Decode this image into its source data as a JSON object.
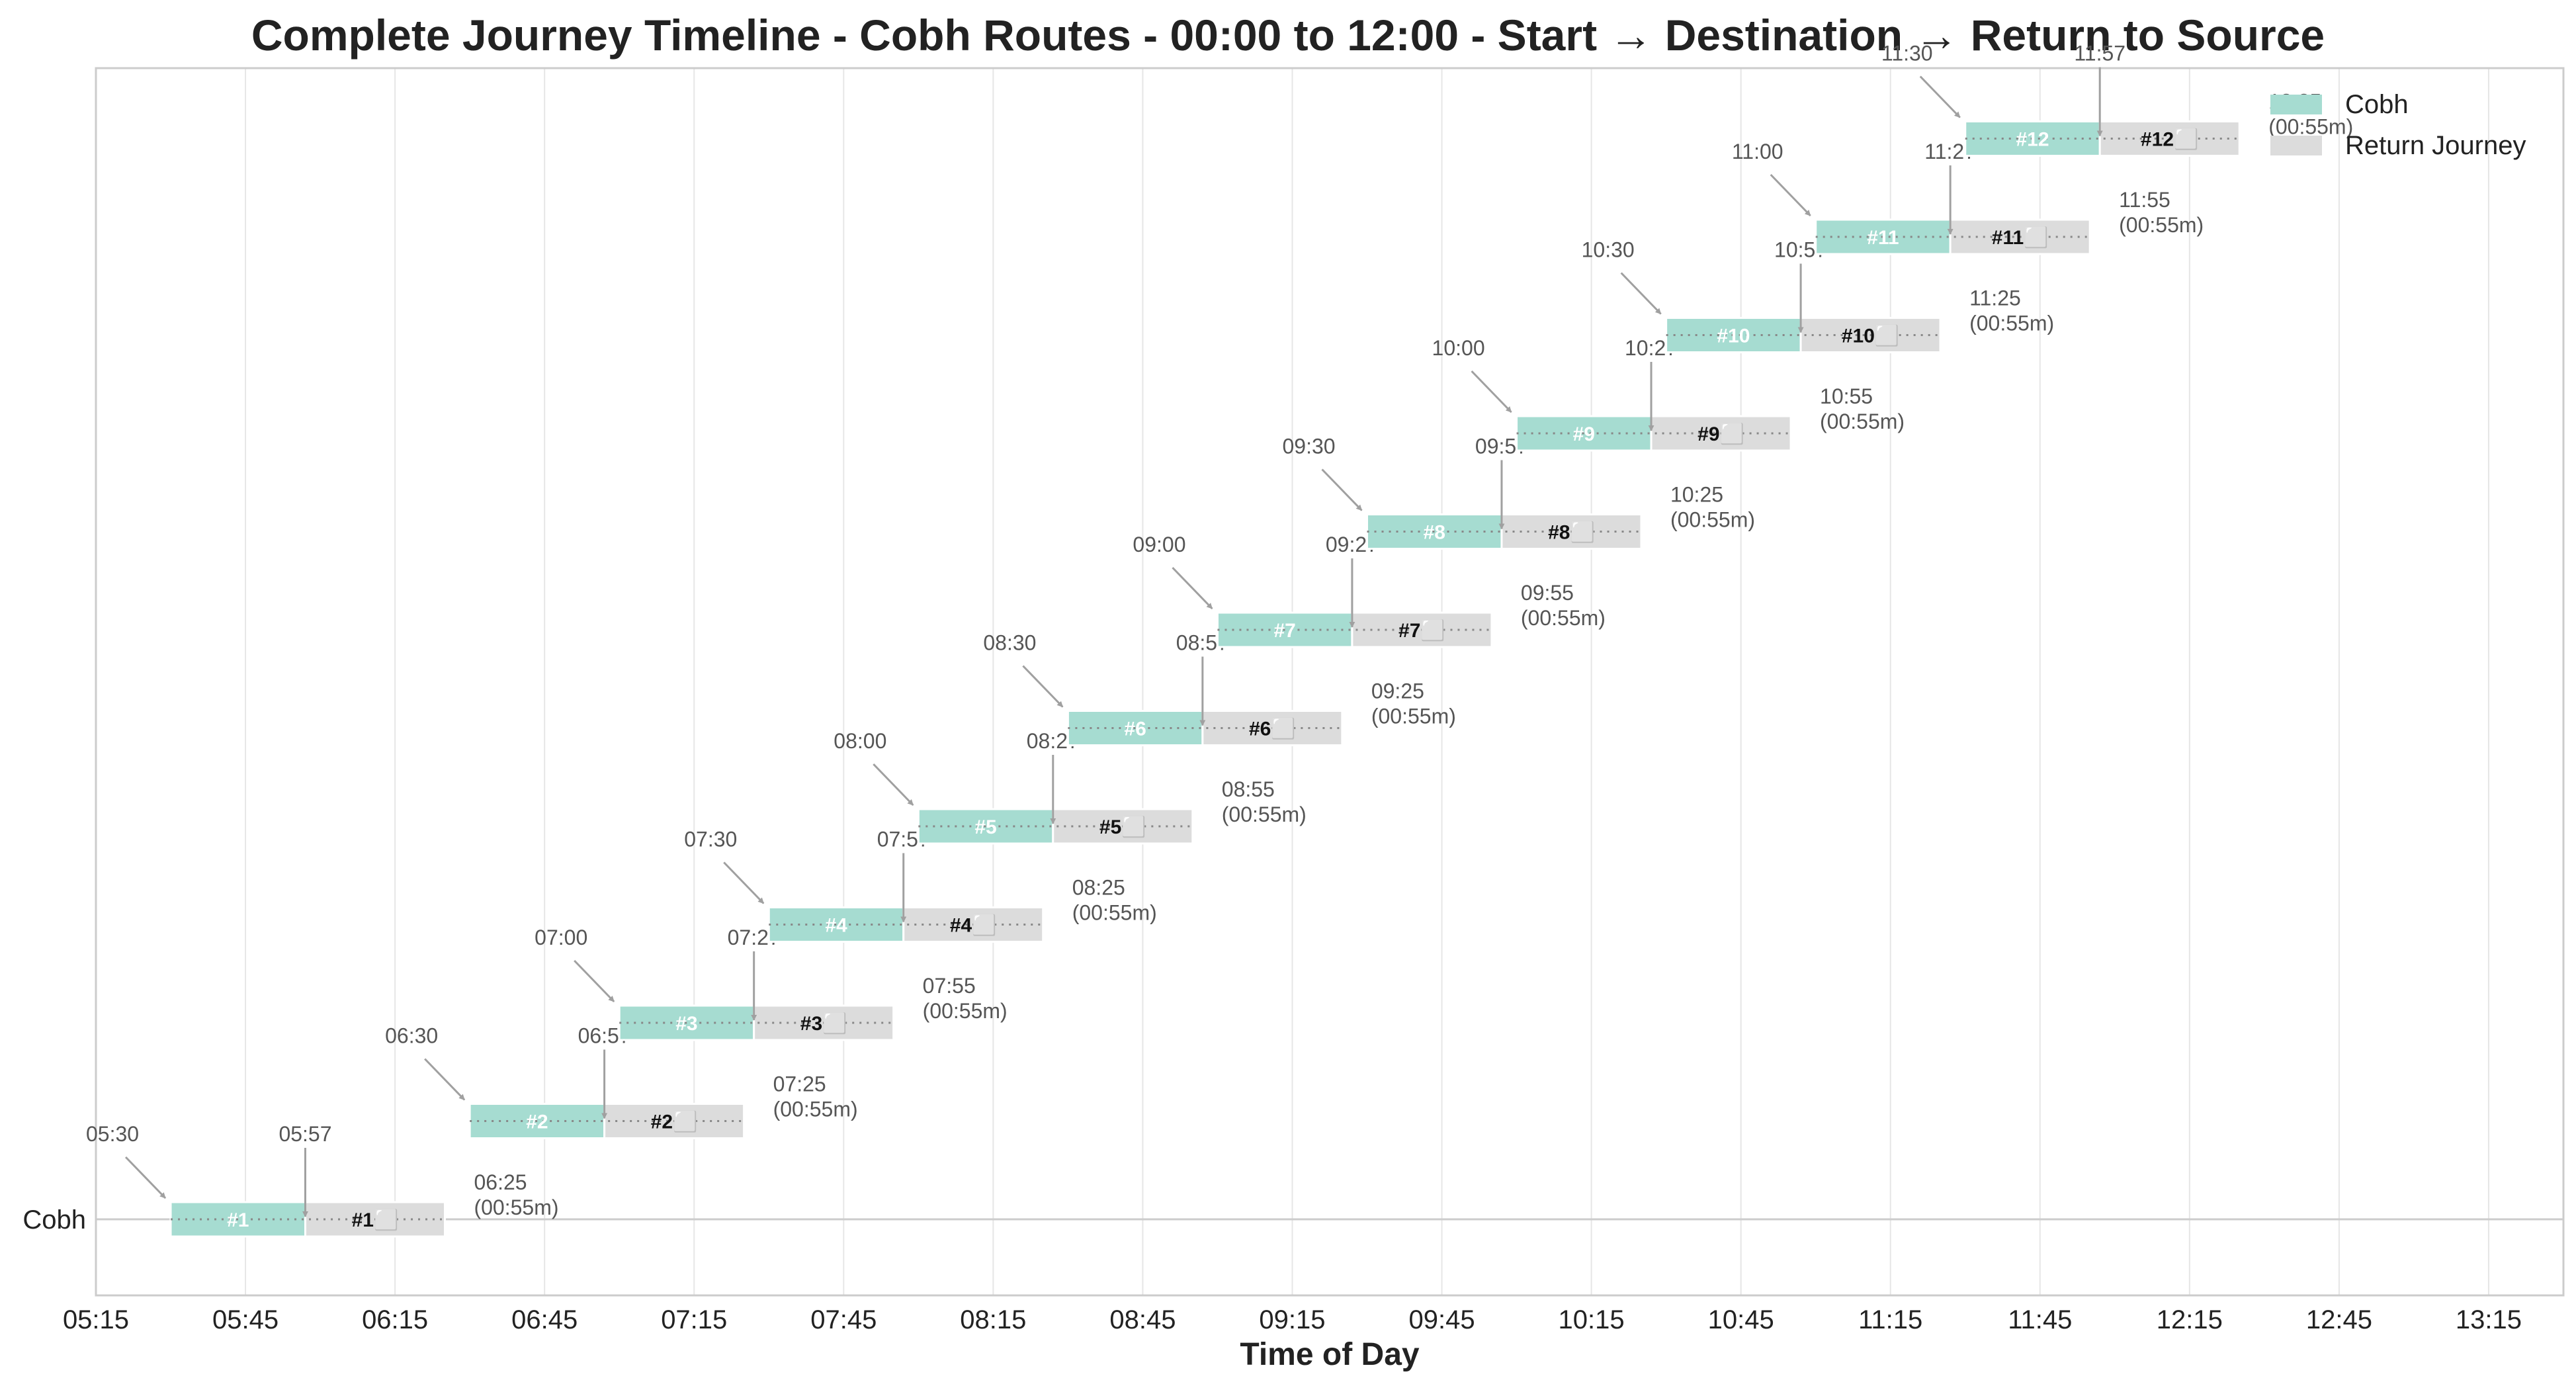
{
  "chart_data": {
    "type": "timeline",
    "title": "Complete Journey Timeline - Cobh Routes - 00:00 to 12:00 - Start → Destination → Return to Source",
    "xlabel": "Time of Day",
    "ylabel": "",
    "category": "Cobh",
    "xlim": [
      "05:15",
      "13:30"
    ],
    "x_ticks": [
      "05:15",
      "05:45",
      "06:15",
      "06:45",
      "07:15",
      "07:45",
      "08:15",
      "08:45",
      "09:15",
      "09:45",
      "10:15",
      "10:45",
      "11:15",
      "11:45",
      "12:15",
      "12:45",
      "13:15"
    ],
    "grid": true,
    "legend_position": "top-right",
    "legend": [
      {
        "label": "Cobh",
        "color": "#a6dcd1"
      },
      {
        "label": "Return Journey",
        "color": "#dcdcdc"
      }
    ],
    "colors": {
      "outbound": "#a6dcd1",
      "return": "#dcdcdc",
      "edge": "#ffffff",
      "arrow": "#a0a0a0"
    },
    "trips": [
      {
        "label": "#1",
        "return_label": "#1⬜",
        "start": "05:30",
        "arrive": "05:57",
        "end": "06:25",
        "duration": "(00:55m)"
      },
      {
        "label": "#2",
        "return_label": "#2⬜",
        "start": "06:30",
        "arrive": "06:57",
        "end": "07:25",
        "duration": "(00:55m)"
      },
      {
        "label": "#3",
        "return_label": "#3⬜",
        "start": "07:00",
        "arrive": "07:27",
        "end": "07:55",
        "duration": "(00:55m)"
      },
      {
        "label": "#4",
        "return_label": "#4⬜",
        "start": "07:30",
        "arrive": "07:57",
        "end": "08:25",
        "duration": "(00:55m)"
      },
      {
        "label": "#5",
        "return_label": "#5⬜",
        "start": "08:00",
        "arrive": "08:27",
        "end": "08:55",
        "duration": "(00:55m)"
      },
      {
        "label": "#6",
        "return_label": "#6⬜",
        "start": "08:30",
        "arrive": "08:57",
        "end": "09:25",
        "duration": "(00:55m)"
      },
      {
        "label": "#7",
        "return_label": "#7⬜",
        "start": "09:00",
        "arrive": "09:27",
        "end": "09:55",
        "duration": "(00:55m)"
      },
      {
        "label": "#8",
        "return_label": "#8⬜",
        "start": "09:30",
        "arrive": "09:57",
        "end": "10:25",
        "duration": "(00:55m)"
      },
      {
        "label": "#9",
        "return_label": "#9⬜",
        "start": "10:00",
        "arrive": "10:27",
        "end": "10:55",
        "duration": "(00:55m)"
      },
      {
        "label": "#10",
        "return_label": "#10⬜",
        "start": "10:30",
        "arrive": "10:57",
        "end": "11:25",
        "duration": "(00:55m)"
      },
      {
        "label": "#11",
        "return_label": "#11⬜",
        "start": "11:00",
        "arrive": "11:27",
        "end": "11:55",
        "duration": "(00:55m)"
      },
      {
        "label": "#12",
        "return_label": "#12⬜",
        "start": "11:30",
        "arrive": "11:57",
        "end": "12:25",
        "duration": "(00:55m)"
      }
    ]
  }
}
